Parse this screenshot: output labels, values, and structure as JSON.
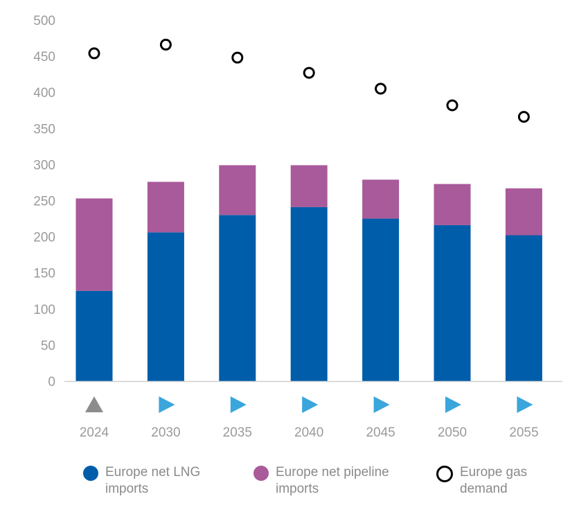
{
  "chart_data": {
    "type": "bar",
    "stacked": true,
    "categories": [
      "2024",
      "2030",
      "2035",
      "2040",
      "2045",
      "2050",
      "2055"
    ],
    "category_markers": [
      "triangle-up",
      "triangle-right",
      "triangle-right",
      "triangle-right",
      "triangle-right",
      "triangle-right",
      "triangle-right"
    ],
    "marker_colors": {
      "triangle-up": "#8c8c8c",
      "triangle-right": "#3aa6dc"
    },
    "series": [
      {
        "name": "Europe net LNG imports",
        "type": "bar",
        "color": "#005daa",
        "values": [
          125,
          206,
          230,
          241,
          225,
          216,
          202
        ]
      },
      {
        "name": "Europe net pipeline imports",
        "type": "bar",
        "color": "#a85a9a",
        "values": [
          128,
          70,
          69,
          58,
          54,
          57,
          65
        ]
      },
      {
        "name": "Europe gas demand",
        "type": "scatter",
        "marker": "open-circle",
        "color": "#000000",
        "values": [
          454,
          466,
          448,
          427,
          405,
          382,
          366
        ]
      }
    ],
    "title": "",
    "xlabel": "",
    "ylabel": "",
    "ylim": [
      0,
      500
    ],
    "yticks": [
      0,
      50,
      100,
      150,
      200,
      250,
      300,
      350,
      400,
      450,
      500
    ],
    "grid": false,
    "legend_position": "bottom"
  },
  "legend": [
    {
      "label": "Europe net LNG imports"
    },
    {
      "label": "Europe net pipeline imports"
    },
    {
      "label": "Europe gas demand"
    }
  ]
}
